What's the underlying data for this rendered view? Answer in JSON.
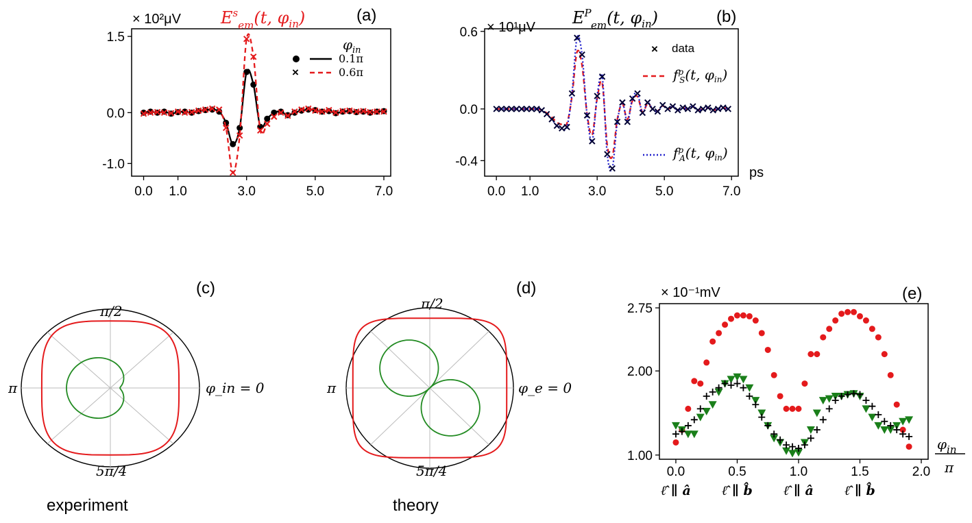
{
  "chart_data": [
    {
      "id": "a",
      "type": "line",
      "panel_label": "(a)",
      "title": "E^s_em(t, φ_in)",
      "title_color": "#e41a1c",
      "y_multiplier": "× 10²μV",
      "xlabel": "",
      "x_ticks": [
        "0.0",
        "1.0",
        "3.0",
        "5.0",
        "7.0"
      ],
      "x_tick_values": [
        0,
        1,
        3,
        5,
        7
      ],
      "y_ticks": [
        "1.5",
        "0.0",
        "-1.0"
      ],
      "y_tick_values": [
        1.5,
        0,
        -1.0
      ],
      "xlim": [
        -0.35,
        7.2
      ],
      "ylim": [
        -1.25,
        1.65
      ],
      "legend_title": "φ_in",
      "series": [
        {
          "name": "0.1π",
          "color": "#000000",
          "marker": "dot",
          "line": "solid",
          "x": [
            0,
            0.2,
            0.4,
            0.6,
            0.8,
            1.0,
            1.2,
            1.4,
            1.6,
            1.8,
            2.0,
            2.2,
            2.4,
            2.6,
            2.8,
            3.0,
            3.2,
            3.4,
            3.6,
            3.8,
            4.0,
            4.2,
            4.4,
            4.6,
            4.8,
            5.0,
            5.2,
            5.4,
            5.6,
            5.8,
            6.0,
            6.2,
            6.4,
            6.6,
            6.8,
            7.0
          ],
          "y": [
            0,
            0.02,
            0,
            0.02,
            -0.02,
            0.01,
            0.02,
            0,
            0.03,
            0.05,
            0.06,
            0.02,
            -0.2,
            -0.62,
            -0.3,
            0.8,
            0.55,
            -0.28,
            -0.12,
            0,
            0.02,
            -0.05,
            0.0,
            0.04,
            0.06,
            0.05,
            0.02,
            0.03,
            -0.01,
            0.02,
            0.03,
            0.01,
            0.02,
            0.0,
            0.02,
            0.03
          ]
        },
        {
          "name": "0.6π",
          "color": "#e41a1c",
          "marker": "x",
          "line": "dashed",
          "x": [
            0,
            0.2,
            0.4,
            0.6,
            0.8,
            1.0,
            1.2,
            1.4,
            1.6,
            1.8,
            2.0,
            2.2,
            2.4,
            2.6,
            2.8,
            3.0,
            3.2,
            3.4,
            3.6,
            3.8,
            4.0,
            4.2,
            4.4,
            4.6,
            4.8,
            5.0,
            5.2,
            5.4,
            5.6,
            5.8,
            6.0,
            6.2,
            6.4,
            6.6,
            6.8,
            7.0
          ],
          "y": [
            -0.02,
            0.0,
            0.01,
            0.0,
            -0.01,
            0.02,
            0.0,
            0.01,
            0.04,
            0.06,
            0.08,
            0.06,
            -0.3,
            -1.18,
            -0.45,
            1.45,
            1.1,
            -0.35,
            -0.22,
            -0.08,
            0.0,
            -0.06,
            0.02,
            0.06,
            0.08,
            0.04,
            0.02,
            0.05,
            0.0,
            0.03,
            0.04,
            0.02,
            0.03,
            0.01,
            0.02,
            0.02
          ]
        }
      ]
    },
    {
      "id": "b",
      "type": "line",
      "panel_label": "(b)",
      "title": "E^P_em(t, φ_in)",
      "title_color": "#000000",
      "y_multiplier": "× 10¹μV",
      "xlabel": "ps",
      "x_ticks": [
        "0.0",
        "1.0",
        "3.0",
        "5.0",
        "7.0"
      ],
      "x_tick_values": [
        0,
        1,
        3,
        5,
        7
      ],
      "y_ticks": [
        "0.6",
        "0.0",
        "-0.4"
      ],
      "y_tick_values": [
        0.6,
        0,
        -0.4
      ],
      "xlim": [
        -0.35,
        7.2
      ],
      "ylim": [
        -0.52,
        0.62
      ],
      "series": [
        {
          "name": "data",
          "color": "#000033",
          "marker": "x",
          "line": "none",
          "x": [
            0,
            0.15,
            0.3,
            0.45,
            0.6,
            0.75,
            0.9,
            1.05,
            1.2,
            1.35,
            1.5,
            1.65,
            1.8,
            1.95,
            2.1,
            2.25,
            2.4,
            2.55,
            2.7,
            2.85,
            3.0,
            3.15,
            3.3,
            3.45,
            3.6,
            3.75,
            3.9,
            4.05,
            4.2,
            4.35,
            4.5,
            4.65,
            4.8,
            4.95,
            5.1,
            5.25,
            5.4,
            5.55,
            5.7,
            5.85,
            6.0,
            6.15,
            6.3,
            6.45,
            6.6,
            6.75,
            6.9
          ],
          "y": [
            0,
            0,
            0,
            0,
            0,
            0,
            0,
            0,
            0,
            -0.01,
            -0.04,
            -0.08,
            -0.13,
            -0.15,
            -0.14,
            0.12,
            0.55,
            0.42,
            -0.05,
            -0.25,
            0.1,
            0.25,
            -0.35,
            -0.46,
            -0.1,
            0.05,
            -0.1,
            0.08,
            0.12,
            -0.03,
            0.05,
            0.0,
            -0.02,
            0.03,
            0.0,
            0.02,
            -0.01,
            0.01,
            0.0,
            0.02,
            -0.01,
            0.0,
            0.01,
            -0.01,
            0.0,
            0.01,
            0.0
          ]
        },
        {
          "name": "f^p_S(t, φ_in)",
          "color": "#e41a1c",
          "line": "dashed"
        },
        {
          "name": "f^p_A(t, φ_in)",
          "color": "#1f1fcc",
          "line": "dotted"
        }
      ]
    },
    {
      "id": "c",
      "type": "polar",
      "panel_label": "(c)",
      "caption": "experiment",
      "angle_labels": {
        "top": "π/2",
        "left": "π",
        "bottom": "5π/4",
        "right": "φ_in = 0"
      },
      "series": [
        {
          "name": "outer",
          "color": "#e41a1c",
          "shape": "ellipse",
          "rx_frac": 0.77,
          "ry_frac": 0.85,
          "square": 3.5
        },
        {
          "name": "inner",
          "color": "#228b22",
          "shape": "cardioid",
          "r": [
            0.2,
            0.35,
            0.62,
            0.75,
            0.7,
            0.55,
            0.45,
            0.4,
            0.45,
            0.55,
            0.7,
            0.75,
            0.62,
            0.35,
            0.2,
            0.05
          ]
        }
      ]
    },
    {
      "id": "d",
      "type": "polar",
      "panel_label": "(d)",
      "caption": "theory",
      "angle_labels": {
        "top": "π/2",
        "left": "π",
        "bottom": "5π/4",
        "right": "φ_e = 0"
      },
      "series": [
        {
          "name": "outer",
          "color": "#e41a1c",
          "shape": "ellipse",
          "rx_frac": 0.92,
          "ry_frac": 0.87,
          "square": 5
        },
        {
          "name": "inner",
          "color": "#228b22",
          "shape": "two-lobe",
          "angle_deg": 135,
          "lobe": 0.7
        }
      ]
    },
    {
      "id": "e",
      "type": "scatter",
      "panel_label": "(e)",
      "y_multiplier": "× 10⁻¹mV",
      "xlabel": "φ_in / π",
      "x_ticks": [
        "0.0",
        "0.5",
        "1.0",
        "1.5",
        "2.0"
      ],
      "x_tick_values": [
        0,
        0.5,
        1.0,
        1.5,
        2.0
      ],
      "y_ticks": [
        "2.75",
        "2.00",
        "1.00"
      ],
      "y_tick_values": [
        2.75,
        2.0,
        1.0
      ],
      "xlim": [
        -0.05,
        2.0
      ],
      "ylim": [
        0.95,
        2.8
      ],
      "x_sublabels": [
        "ℓ̂ ∥ â",
        "ℓ̂ ∥ b̂",
        "ℓ̂ ∥ â",
        "ℓ̂ ∥ b̂"
      ],
      "x_sublabel_values": [
        0,
        0.5,
        1.0,
        1.5
      ],
      "series": [
        {
          "name": "red",
          "color": "#e41a1c",
          "marker": "dot",
          "x": [
            0,
            0.05,
            0.1,
            0.15,
            0.2,
            0.25,
            0.3,
            0.35,
            0.4,
            0.45,
            0.5,
            0.55,
            0.6,
            0.65,
            0.7,
            0.75,
            0.8,
            0.85,
            0.9,
            0.95,
            1.0,
            1.05,
            1.1,
            1.15,
            1.2,
            1.25,
            1.3,
            1.35,
            1.4,
            1.45,
            1.5,
            1.55,
            1.6,
            1.65,
            1.7,
            1.75,
            1.8,
            1.85,
            1.9
          ],
          "y": [
            1.15,
            1.3,
            1.55,
            1.88,
            1.85,
            2.1,
            2.35,
            2.45,
            2.55,
            2.62,
            2.66,
            2.66,
            2.65,
            2.6,
            2.45,
            2.25,
            1.95,
            1.7,
            1.55,
            1.55,
            1.55,
            1.85,
            2.2,
            2.2,
            2.4,
            2.5,
            2.6,
            2.68,
            2.7,
            2.7,
            2.65,
            2.6,
            2.5,
            2.4,
            2.2,
            1.95,
            1.6,
            1.3,
            1.1
          ]
        },
        {
          "name": "green",
          "color": "#1a7f1a",
          "marker": "triangle-down",
          "x": [
            0,
            0.05,
            0.1,
            0.15,
            0.2,
            0.25,
            0.3,
            0.35,
            0.4,
            0.45,
            0.5,
            0.55,
            0.6,
            0.65,
            0.7,
            0.75,
            0.8,
            0.85,
            0.9,
            0.95,
            1.0,
            1.05,
            1.1,
            1.15,
            1.2,
            1.25,
            1.3,
            1.35,
            1.4,
            1.45,
            1.5,
            1.55,
            1.6,
            1.65,
            1.7,
            1.75,
            1.8,
            1.85,
            1.9
          ],
          "y": [
            1.35,
            1.3,
            1.25,
            1.25,
            1.45,
            1.52,
            1.6,
            1.75,
            1.85,
            1.9,
            1.93,
            1.9,
            1.8,
            1.65,
            1.5,
            1.35,
            1.2,
            1.15,
            1.05,
            1.02,
            1.03,
            1.15,
            1.3,
            1.5,
            1.65,
            1.67,
            1.7,
            1.7,
            1.72,
            1.73,
            1.7,
            1.55,
            1.45,
            1.35,
            1.3,
            1.3,
            1.35,
            1.4,
            1.42
          ]
        },
        {
          "name": "black",
          "color": "#000000",
          "marker": "plus",
          "x": [
            0,
            0.05,
            0.1,
            0.15,
            0.2,
            0.25,
            0.3,
            0.35,
            0.4,
            0.45,
            0.5,
            0.55,
            0.6,
            0.65,
            0.7,
            0.75,
            0.8,
            0.85,
            0.9,
            0.95,
            1.0,
            1.05,
            1.1,
            1.15,
            1.2,
            1.25,
            1.3,
            1.35,
            1.4,
            1.45,
            1.5,
            1.55,
            1.6,
            1.65,
            1.7,
            1.75,
            1.8,
            1.85,
            1.9
          ],
          "y": [
            1.25,
            1.28,
            1.35,
            1.42,
            1.55,
            1.7,
            1.75,
            1.8,
            1.85,
            1.83,
            1.85,
            1.8,
            1.7,
            1.6,
            1.45,
            1.35,
            1.25,
            1.18,
            1.12,
            1.1,
            1.08,
            1.12,
            1.2,
            1.3,
            1.42,
            1.55,
            1.65,
            1.7,
            1.72,
            1.73,
            1.72,
            1.65,
            1.58,
            1.48,
            1.4,
            1.35,
            1.3,
            1.25,
            1.22
          ]
        }
      ]
    }
  ]
}
